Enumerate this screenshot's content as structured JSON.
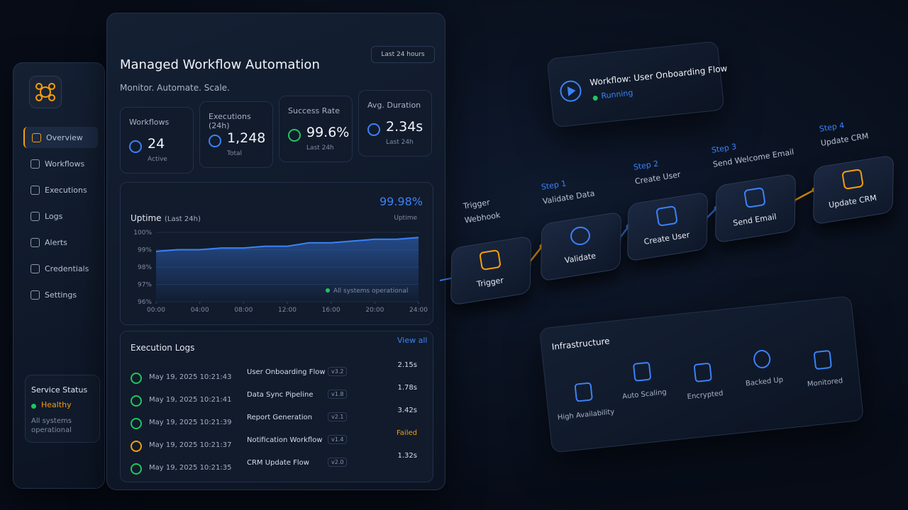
{
  "sidebar": {
    "nav": [
      "Overview",
      "Workflows",
      "Executions",
      "Logs",
      "Alerts",
      "Credentials",
      "Settings"
    ],
    "service_status": {
      "title": "Service Status",
      "state": "Healthy",
      "note": "All systems operational"
    }
  },
  "header": {
    "title": "Managed Workflow Automation",
    "subtitle": "Monitor. Automate. Scale.",
    "range": "Last 24 hours"
  },
  "stats": [
    {
      "label": "Workflows",
      "value": "24",
      "note": "Active"
    },
    {
      "label": "Executions (24h)",
      "value": "1,248",
      "note": "Total"
    },
    {
      "label": "Success Rate",
      "value": "99.6%",
      "note": "Last 24h"
    },
    {
      "label": "Avg. Duration",
      "value": "2.34s",
      "note": "Last 24h"
    }
  ],
  "uptime": {
    "title": "Uptime",
    "title_suffix": "(Last 24h)",
    "big_value": "99.98%",
    "big_label": "Uptime",
    "status": "All systems operational",
    "color": "#3b82f6",
    "x": [
      0,
      2,
      4,
      6,
      8,
      10,
      12,
      14,
      16,
      18,
      20,
      22,
      24
    ],
    "values": [
      98.9,
      99.0,
      99.0,
      99.1,
      99.1,
      99.2,
      99.2,
      99.4,
      99.4,
      99.5,
      99.6,
      99.6,
      99.7
    ],
    "xlim": [
      0,
      24
    ],
    "xticks": [
      {
        "value": 0,
        "label": "00:00"
      },
      {
        "value": 4,
        "label": "04:00"
      },
      {
        "value": 8,
        "label": "08:00"
      },
      {
        "value": 12,
        "label": "12:00"
      },
      {
        "value": 16,
        "label": "16:00"
      },
      {
        "value": 20,
        "label": "20:00"
      },
      {
        "value": 24,
        "label": "24:00"
      }
    ],
    "ylim": [
      96,
      100
    ],
    "yticks": [
      {
        "value": 96,
        "label": "96%"
      },
      {
        "value": 97,
        "label": "97%"
      },
      {
        "value": 98,
        "label": "98%"
      },
      {
        "value": 99,
        "label": "99%"
      },
      {
        "value": 100,
        "label": "100%"
      }
    ]
  },
  "logs": {
    "title": "Execution Logs",
    "view_all": "View all",
    "rows": [
      {
        "time": "May 19, 2025 10:21:43",
        "name": "User Onboarding Flow",
        "version": "v3.2",
        "result": "2.15s",
        "ok": true
      },
      {
        "time": "May 19, 2025 10:21:41",
        "name": "Data Sync Pipeline",
        "version": "v1.8",
        "result": "1.78s",
        "ok": true
      },
      {
        "time": "May 19, 2025 10:21:39",
        "name": "Report Generation",
        "version": "v2.1",
        "result": "3.42s",
        "ok": true
      },
      {
        "time": "May 19, 2025 10:21:37",
        "name": "Notification Workflow",
        "version": "v1.4",
        "result": "Failed",
        "ok": false
      },
      {
        "time": "May 19, 2025 10:21:35",
        "name": "CRM Update Flow",
        "version": "v2.0",
        "result": "1.32s",
        "ok": true
      }
    ]
  },
  "workflow": {
    "title": "Workflow: User Onboarding Flow",
    "status": "Running",
    "steps": [
      {
        "label": "Trigger",
        "desc": "Webhook",
        "node": "Trigger"
      },
      {
        "label": "Step 1",
        "desc": "Validate Data",
        "node": "Validate"
      },
      {
        "label": "Step 2",
        "desc": "Create User",
        "node": "Create User"
      },
      {
        "label": "Step 3",
        "desc": "Send Welcome Email",
        "node": "Send Email"
      },
      {
        "label": "Step 4",
        "desc": "Update CRM",
        "node": "Update CRM"
      }
    ]
  },
  "infrastructure": {
    "title": "Infrastructure",
    "items": [
      "High Availability",
      "Auto Scaling",
      "Encrypted",
      "Backed Up",
      "Monitored"
    ]
  }
}
